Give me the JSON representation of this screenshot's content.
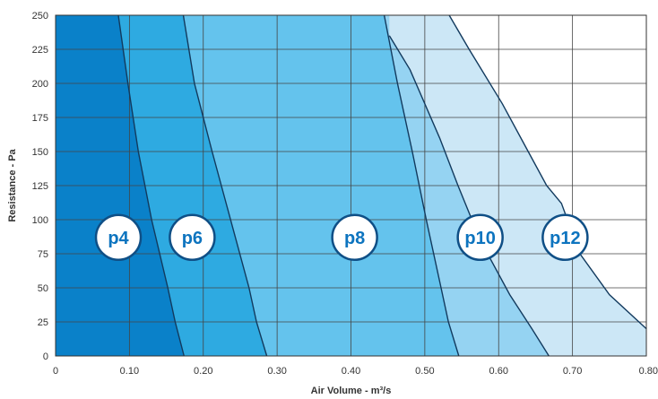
{
  "chart_data": {
    "type": "area",
    "title": "",
    "xlabel": "Air Volume - m³/s",
    "ylabel": "Resistance - Pa",
    "xlim": [
      0,
      0.8
    ],
    "ylim": [
      0,
      250
    ],
    "grid": true,
    "x_tick_labels": [
      "0",
      "0.10",
      "0.20",
      "0.30",
      "0.40",
      "0.50",
      "0.60",
      "0.70",
      "0.80"
    ],
    "y_tick_labels": [
      "0",
      "25",
      "50",
      "75",
      "100",
      "125",
      "150",
      "175",
      "200",
      "225",
      "250"
    ],
    "series": [
      {
        "name": "p12",
        "color": "#cce7f6",
        "curve": [
          [
            0.533,
            250
          ],
          [
            0.56,
            225
          ],
          [
            0.605,
            185
          ],
          [
            0.64,
            150
          ],
          [
            0.665,
            125
          ],
          [
            0.685,
            112
          ],
          [
            0.71,
            75
          ],
          [
            0.75,
            45
          ],
          [
            0.8,
            20
          ]
        ],
        "right_edge_to": 0.705
      },
      {
        "name": "p10",
        "color": "#95d3f2",
        "curve": [
          [
            0.452,
            235
          ],
          [
            0.48,
            210
          ],
          [
            0.52,
            160
          ],
          [
            0.545,
            125
          ],
          [
            0.575,
            85
          ],
          [
            0.615,
            45
          ],
          [
            0.645,
            20
          ],
          [
            0.668,
            0
          ]
        ],
        "start_top": 0.452
      },
      {
        "name": "p8",
        "color": "#64c3ed",
        "curve": [
          [
            0.445,
            250
          ],
          [
            0.463,
            200
          ],
          [
            0.483,
            150
          ],
          [
            0.502,
            100
          ],
          [
            0.522,
            50
          ],
          [
            0.532,
            25
          ],
          [
            0.546,
            0
          ]
        ]
      },
      {
        "name": "p6",
        "color": "#2eaae1",
        "curve": [
          [
            0.173,
            250
          ],
          [
            0.188,
            200
          ],
          [
            0.212,
            150
          ],
          [
            0.237,
            100
          ],
          [
            0.262,
            50
          ],
          [
            0.272,
            25
          ],
          [
            0.286,
            0
          ]
        ]
      },
      {
        "name": "p4",
        "color": "#0a81c9",
        "curve": [
          [
            0.085,
            250
          ],
          [
            0.098,
            200
          ],
          [
            0.112,
            150
          ],
          [
            0.13,
            100
          ],
          [
            0.152,
            50
          ],
          [
            0.162,
            25
          ],
          [
            0.174,
            0
          ]
        ]
      }
    ],
    "labels": [
      {
        "text": "p4",
        "x": 0.085,
        "y": 87
      },
      {
        "text": "p6",
        "x": 0.185,
        "y": 87
      },
      {
        "text": "p8",
        "x": 0.405,
        "y": 87
      },
      {
        "text": "p10",
        "x": 0.575,
        "y": 87
      },
      {
        "text": "p12",
        "x": 0.69,
        "y": 87
      }
    ]
  }
}
